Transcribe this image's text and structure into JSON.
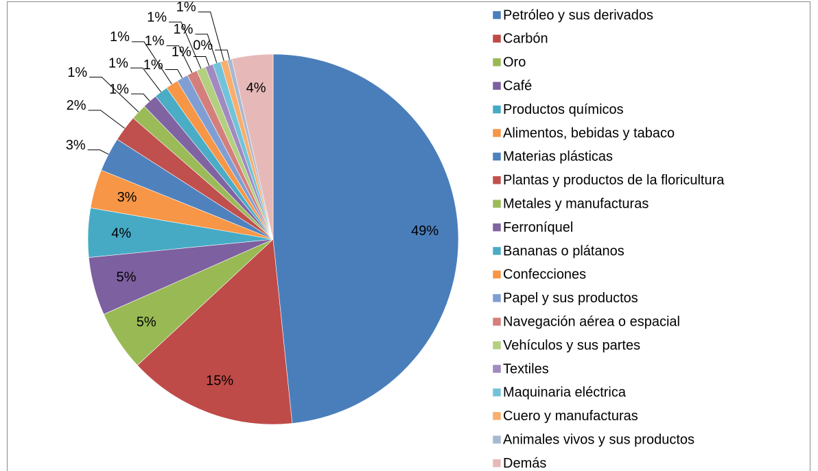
{
  "chart_data": {
    "type": "pie",
    "categories": [
      "Petróleo y sus derivados",
      "Carbón",
      "Oro",
      "Café",
      "Productos químicos",
      "Alimentos, bebidas y tabaco",
      "Materias plásticas",
      "Plantas y productos de la floricultura",
      "Metales y manufacturas",
      "Ferroníquel",
      "Bananas o plátanos",
      "Confecciones",
      "Papel y sus productos",
      "Navegación aérea o espacial",
      "Vehículos y sus partes",
      "Textiles",
      "Maquinaria eléctrica",
      "Cuero y manufacturas",
      "Animales vivos y sus productos",
      "Demás"
    ],
    "values": [
      48.6,
      14.8,
      5.3,
      5.1,
      4.3,
      3.4,
      3.0,
      2.3,
      1.4,
      1.3,
      1.2,
      1.1,
      1.0,
      0.9,
      0.8,
      0.7,
      0.7,
      0.6,
      0.4,
      3.6
    ],
    "value_labels": [
      "49%",
      "15%",
      "5%",
      "5%",
      "4%",
      "3%",
      "3%",
      "2%",
      "1%",
      "1%",
      "1%",
      "1%",
      "1%",
      "1%",
      "1%",
      "1%",
      "1%",
      "1%",
      "0%",
      "4%"
    ],
    "colors": [
      "#4a7ebb",
      "#be4b48",
      "#98b954",
      "#7d60a0",
      "#46aac5",
      "#f79646",
      "#4f81bd",
      "#c0504d",
      "#9bbb59",
      "#8064a2",
      "#4bacc6",
      "#f79646",
      "#7f9fd4",
      "#d47f7c",
      "#b3cf80",
      "#a08ac0",
      "#72c3d9",
      "#f9ae6c",
      "#a9b8d2",
      "#e6b9b8"
    ],
    "legend": "right"
  }
}
